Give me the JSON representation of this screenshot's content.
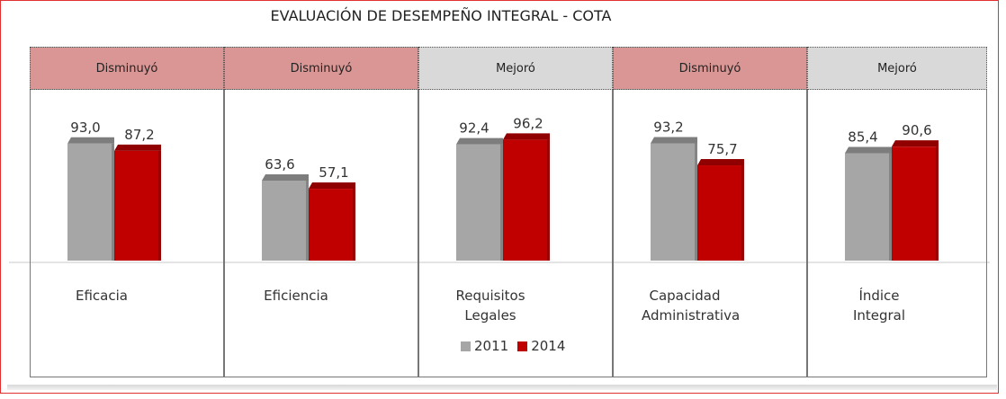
{
  "chart_data": {
    "type": "bar",
    "title": "EVALUACIÓN DE DESEMPEÑO INTEGRAL - COTA",
    "categories": [
      "Eficacia",
      "Eficiencia",
      "Requisitos Legales",
      "Capacidad Administrativa",
      "Índice Integral"
    ],
    "statuses": [
      "Disminuyó",
      "Disminuyó",
      "Mejoró",
      "Disminuyó",
      "Mejoró"
    ],
    "status_colors": [
      "#d99694",
      "#d99694",
      "#d9d9d9",
      "#d99694",
      "#d9d9d9"
    ],
    "series": [
      {
        "name": "2011",
        "color": "#a6a6a6",
        "values": [
          93.0,
          63.6,
          92.4,
          93.2,
          85.4
        ],
        "value_labels": [
          "93,0",
          "63,6",
          "92,4",
          "93,2",
          "85,4"
        ]
      },
      {
        "name": "2014",
        "color": "#c00000",
        "values": [
          87.2,
          57.1,
          96.2,
          75.7,
          90.6
        ],
        "value_labels": [
          "87,2",
          "57,1",
          "96,2",
          "75,7",
          "90,6"
        ]
      }
    ]
  }
}
